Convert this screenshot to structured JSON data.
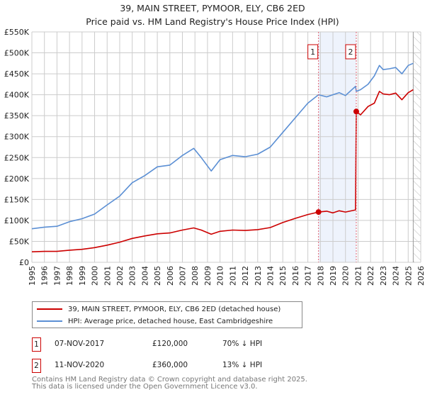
{
  "title": {
    "line1": "39, MAIN STREET, PYMOOR, ELY, CB6 2ED",
    "line2": "Price paid vs. HM Land Registry's House Price Index (HPI)"
  },
  "chart_data": {
    "type": "line",
    "xlim": [
      1995,
      2026
    ],
    "ylim": [
      0,
      550000
    ],
    "yticks": [
      0,
      50000,
      100000,
      150000,
      200000,
      250000,
      300000,
      350000,
      400000,
      450000,
      500000,
      550000
    ],
    "ytick_labels": [
      "£0",
      "£50K",
      "£100K",
      "£150K",
      "£200K",
      "£250K",
      "£300K",
      "£350K",
      "£400K",
      "£450K",
      "£500K",
      "£550K"
    ],
    "xticks": [
      "1995",
      "1996",
      "1997",
      "1998",
      "1999",
      "2000",
      "2001",
      "2002",
      "2003",
      "2004",
      "2005",
      "2006",
      "2007",
      "2008",
      "2009",
      "2010",
      "2011",
      "2012",
      "2013",
      "2014",
      "2015",
      "2016",
      "2017",
      "2018",
      "2019",
      "2020",
      "2021",
      "2022",
      "2023",
      "2024",
      "2025",
      "2026"
    ],
    "grid": true,
    "shaded_range": [
      2017.85,
      2020.86
    ],
    "forecast_hatch_from": 2025.4,
    "series": [
      {
        "name": "39, MAIN STREET, PYMOOR, ELY, CB6 2ED (detached house)",
        "color": "#cc0000",
        "x": [
          1995,
          1996,
          1997,
          1998,
          1999,
          2000,
          2001,
          2002,
          2003,
          2004,
          2005,
          2006,
          2007,
          2007.9,
          2008.5,
          2009.3,
          2010,
          2011,
          2012,
          2013,
          2014,
          2015,
          2016,
          2017,
          2017.85,
          2018.5,
          2019,
          2019.5,
          2020,
          2020.8,
          2020.86,
          2021.2,
          2021.8,
          2022.3,
          2022.7,
          2023,
          2023.5,
          2024,
          2024.5,
          2025,
          2025.4
        ],
        "y": [
          25000,
          26000,
          26000,
          29000,
          31000,
          35000,
          41000,
          48000,
          57000,
          63000,
          68000,
          70000,
          77000,
          82000,
          77000,
          67000,
          74000,
          77000,
          76000,
          78000,
          83000,
          95000,
          105000,
          114000,
          120000,
          122000,
          118000,
          123000,
          120000,
          125000,
          360000,
          352000,
          372000,
          380000,
          408000,
          402000,
          400000,
          404000,
          388000,
          405000,
          412000
        ]
      },
      {
        "name": "HPI: Average price, detached house, East Cambridgeshire",
        "color": "#5b8fd4",
        "x": [
          1995,
          1996,
          1997,
          1998,
          1999,
          2000,
          2001,
          2002,
          2003,
          2004,
          2005,
          2006,
          2007,
          2007.9,
          2008.5,
          2009.3,
          2010,
          2011,
          2012,
          2013,
          2014,
          2015,
          2016,
          2017,
          2017.85,
          2018.5,
          2019,
          2019.5,
          2020,
          2020.8,
          2020.86,
          2021.2,
          2021.8,
          2022.3,
          2022.7,
          2023,
          2023.5,
          2024,
          2024.5,
          2025,
          2025.4
        ],
        "y": [
          80000,
          84000,
          86000,
          97000,
          104000,
          115000,
          137000,
          158000,
          190000,
          207000,
          228000,
          232000,
          255000,
          272000,
          250000,
          218000,
          245000,
          255000,
          252000,
          258000,
          275000,
          310000,
          345000,
          380000,
          400000,
          395000,
          400000,
          405000,
          398000,
          420000,
          408000,
          412000,
          425000,
          445000,
          470000,
          460000,
          462000,
          465000,
          450000,
          470000,
          475000
        ]
      }
    ],
    "annotations": [
      {
        "label": "1",
        "x": 2017.85,
        "y": 120000
      },
      {
        "label": "2",
        "x": 2020.86,
        "y": 360000
      }
    ],
    "legend_position": "below"
  },
  "legend": {
    "items": [
      {
        "label": "39, MAIN STREET, PYMOOR, ELY, CB6 2ED (detached house)",
        "color": "#cc0000"
      },
      {
        "label": "HPI: Average price, detached house, East Cambridgeshire",
        "color": "#5b8fd4"
      }
    ]
  },
  "sales": [
    {
      "num": "1",
      "date": "07-NOV-2017",
      "price": "£120,000",
      "diff": "70% ↓ HPI"
    },
    {
      "num": "2",
      "date": "11-NOV-2020",
      "price": "£360,000",
      "diff": "13% ↓ HPI"
    }
  ],
  "footer": {
    "line1": "Contains HM Land Registry data © Crown copyright and database right 2025.",
    "line2": "This data is licensed under the Open Government Licence v3.0."
  }
}
